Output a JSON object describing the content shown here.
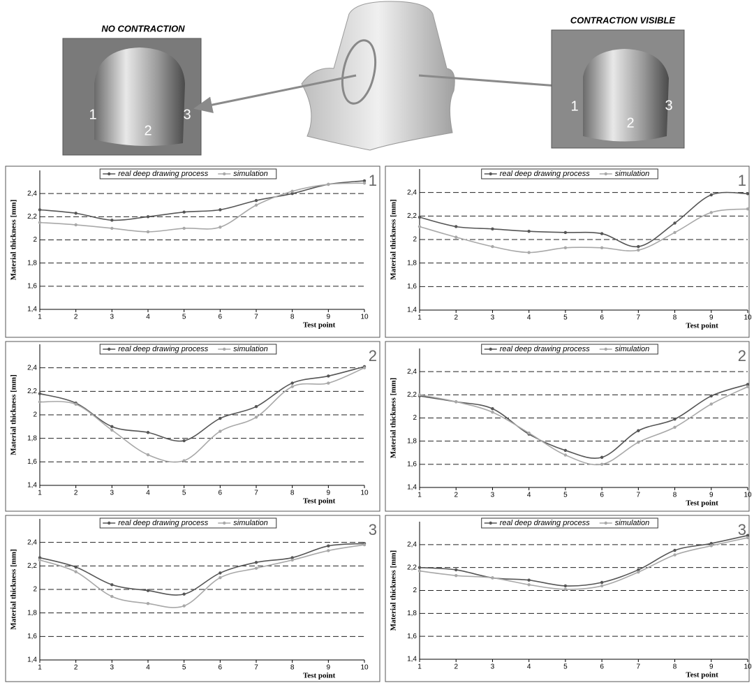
{
  "photos": {
    "left": {
      "title": "NO CONTRACTION",
      "labels": [
        "1",
        "2",
        "3"
      ]
    },
    "right": {
      "title": "CONTRACTION VISIBLE",
      "labels": [
        "1",
        "2",
        "3"
      ]
    }
  },
  "chart_data": [
    {
      "type": "line",
      "annotation": "1",
      "ylabel": "Material thickness [mm]",
      "xlabel": "Test point",
      "x": [
        1,
        2,
        3,
        4,
        5,
        6,
        7,
        8,
        9,
        10
      ],
      "xlim": [
        1,
        10
      ],
      "xticks": [
        1,
        2,
        3,
        4,
        5,
        6,
        7,
        8,
        9,
        10
      ],
      "ylim": [
        1.4,
        2.6
      ],
      "yticks": [
        {
          "value": 1.4,
          "label": "1,4"
        },
        {
          "value": 1.6,
          "label": "1,6"
        },
        {
          "value": 1.8,
          "label": "1,8"
        },
        2,
        {
          "value": 2.2,
          "label": "2,2"
        },
        {
          "value": 2.4,
          "label": "2,4"
        }
      ],
      "grid": true,
      "legend": "top",
      "series": [
        {
          "name": "real deep drawing process",
          "color": "#555555",
          "values": [
            2.26,
            2.23,
            2.17,
            2.2,
            2.24,
            2.26,
            2.34,
            2.4,
            2.48,
            2.51
          ]
        },
        {
          "name": "simulation",
          "color": "#a8a8a8",
          "values": [
            2.15,
            2.13,
            2.1,
            2.07,
            2.1,
            2.11,
            2.3,
            2.42,
            2.48,
            2.49
          ]
        }
      ]
    },
    {
      "type": "line",
      "annotation": "1",
      "ylabel": "Material thickness [mm]",
      "xlabel": "Test point",
      "x": [
        1,
        2,
        3,
        4,
        5,
        6,
        7,
        8,
        9,
        10
      ],
      "xlim": [
        1,
        10
      ],
      "xticks": [
        1,
        2,
        3,
        4,
        5,
        6,
        7,
        8,
        9,
        10
      ],
      "ylim": [
        1.4,
        2.6
      ],
      "yticks": [
        {
          "value": 1.4,
          "label": "1,4"
        },
        {
          "value": 1.6,
          "label": "1,6"
        },
        {
          "value": 1.8,
          "label": "1,8"
        },
        2,
        {
          "value": 2.2,
          "label": "2,2"
        },
        {
          "value": 2.4,
          "label": "2,4"
        }
      ],
      "grid": true,
      "legend": "top",
      "series": [
        {
          "name": "real deep drawing process",
          "color": "#555555",
          "values": [
            2.19,
            2.11,
            2.09,
            2.07,
            2.06,
            2.05,
            1.94,
            2.14,
            2.38,
            2.39
          ]
        },
        {
          "name": "simulation",
          "color": "#a8a8a8",
          "values": [
            2.11,
            2.02,
            1.94,
            1.89,
            1.93,
            1.93,
            1.91,
            2.06,
            2.23,
            2.26
          ]
        }
      ]
    },
    {
      "type": "line",
      "annotation": "2",
      "ylabel": "Material thickness [mm]",
      "xlabel": "Test point",
      "x": [
        1,
        2,
        3,
        4,
        5,
        6,
        7,
        8,
        9,
        10
      ],
      "xlim": [
        1,
        10
      ],
      "xticks": [
        1,
        2,
        3,
        4,
        5,
        6,
        7,
        8,
        9,
        10
      ],
      "ylim": [
        1.4,
        2.6
      ],
      "yticks": [
        {
          "value": 1.4,
          "label": "1,4"
        },
        {
          "value": 1.6,
          "label": "1,6"
        },
        {
          "value": 1.8,
          "label": "1,8"
        },
        2,
        {
          "value": 2.2,
          "label": "2,2"
        },
        {
          "value": 2.4,
          "label": "2,4"
        }
      ],
      "grid": true,
      "legend": "top",
      "series": [
        {
          "name": "real deep drawing process",
          "color": "#555555",
          "values": [
            2.18,
            2.1,
            1.9,
            1.85,
            1.78,
            1.97,
            2.07,
            2.27,
            2.33,
            2.41
          ]
        },
        {
          "name": "simulation",
          "color": "#a8a8a8",
          "values": [
            2.11,
            2.09,
            1.87,
            1.66,
            1.61,
            1.86,
            1.98,
            2.24,
            2.27,
            2.4
          ]
        }
      ]
    },
    {
      "type": "line",
      "annotation": "2",
      "ylabel": "Material thickness [mm]",
      "xlabel": "Test point",
      "x": [
        1,
        2,
        3,
        4,
        5,
        6,
        7,
        8,
        9,
        10
      ],
      "xlim": [
        1,
        10
      ],
      "xticks": [
        1,
        2,
        3,
        4,
        5,
        6,
        7,
        8,
        9,
        10
      ],
      "ylim": [
        1.4,
        2.6
      ],
      "yticks": [
        {
          "value": 1.4,
          "label": "1,4"
        },
        {
          "value": 1.6,
          "label": "1,6"
        },
        {
          "value": 1.8,
          "label": "1,8"
        },
        2,
        {
          "value": 2.2,
          "label": "2,2"
        },
        {
          "value": 2.4,
          "label": "2,4"
        }
      ],
      "grid": true,
      "legend": "top",
      "series": [
        {
          "name": "real deep drawing process",
          "color": "#555555",
          "values": [
            2.19,
            2.14,
            2.08,
            1.86,
            1.72,
            1.66,
            1.89,
            1.99,
            2.19,
            2.29
          ]
        },
        {
          "name": "simulation",
          "color": "#a8a8a8",
          "values": [
            2.2,
            2.14,
            2.05,
            1.87,
            1.68,
            1.6,
            1.79,
            1.92,
            2.12,
            2.27
          ]
        }
      ]
    },
    {
      "type": "line",
      "annotation": "3",
      "ylabel": "Material thickness [mm]",
      "xlabel": "Test point",
      "x": [
        1,
        2,
        3,
        4,
        5,
        6,
        7,
        8,
        9,
        10
      ],
      "xlim": [
        1,
        10
      ],
      "xticks": [
        1,
        2,
        3,
        4,
        5,
        6,
        7,
        8,
        9,
        10
      ],
      "ylim": [
        1.4,
        2.6
      ],
      "yticks": [
        {
          "value": 1.4,
          "label": "1,4"
        },
        {
          "value": 1.6,
          "label": "1,6"
        },
        {
          "value": 1.8,
          "label": "1,8"
        },
        2,
        {
          "value": 2.2,
          "label": "2,2"
        },
        {
          "value": 2.4,
          "label": "2,4"
        }
      ],
      "grid": true,
      "legend": "top",
      "series": [
        {
          "name": "real deep drawing process",
          "color": "#555555",
          "values": [
            2.27,
            2.19,
            2.04,
            1.99,
            1.96,
            2.14,
            2.23,
            2.27,
            2.37,
            2.39
          ]
        },
        {
          "name": "simulation",
          "color": "#a8a8a8",
          "values": [
            2.25,
            2.15,
            1.94,
            1.88,
            1.86,
            2.1,
            2.18,
            2.25,
            2.33,
            2.38
          ]
        }
      ]
    },
    {
      "type": "line",
      "annotation": "3",
      "ylabel": "Material thickness [mm]",
      "xlabel": "Test point",
      "x": [
        1,
        2,
        3,
        4,
        5,
        6,
        7,
        8,
        9,
        10
      ],
      "xlim": [
        1,
        10
      ],
      "xticks": [
        1,
        2,
        3,
        4,
        5,
        6,
        7,
        8,
        9,
        10
      ],
      "ylim": [
        1.4,
        2.6
      ],
      "yticks": [
        {
          "value": 1.4,
          "label": "1,4"
        },
        {
          "value": 1.6,
          "label": "1,6"
        },
        {
          "value": 1.8,
          "label": "1,8"
        },
        2,
        {
          "value": 2.2,
          "label": "2,2"
        },
        {
          "value": 2.4,
          "label": "2,4"
        }
      ],
      "grid": true,
      "legend": "top",
      "series": [
        {
          "name": "real deep drawing process",
          "color": "#555555",
          "values": [
            2.2,
            2.18,
            2.11,
            2.09,
            2.04,
            2.07,
            2.18,
            2.35,
            2.41,
            2.48
          ]
        },
        {
          "name": "simulation",
          "color": "#a8a8a8",
          "values": [
            2.17,
            2.13,
            2.11,
            2.05,
            2.01,
            2.04,
            2.16,
            2.31,
            2.39,
            2.46
          ]
        }
      ]
    }
  ]
}
